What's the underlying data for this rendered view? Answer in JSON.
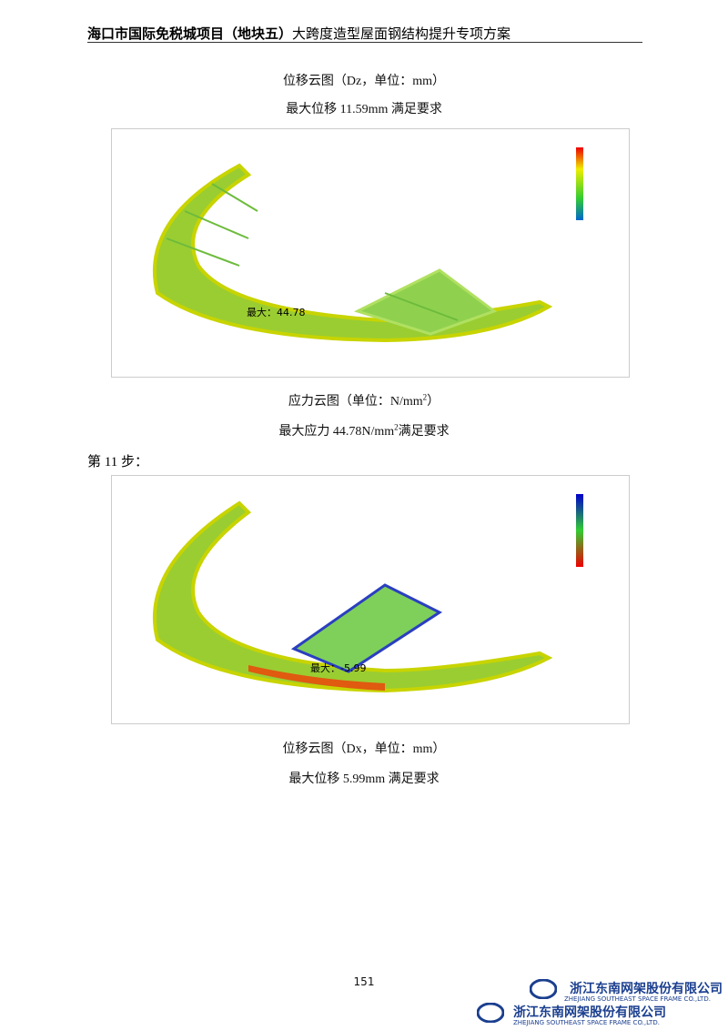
{
  "header": {
    "title_bold": "海口市国际免税城项目（地块五）",
    "title_rest": "大跨度造型屋面钢结构提升专项方案"
  },
  "captions": {
    "c1": "位移云图（Dz，单位：mm）",
    "c2": "最大位移 11.59mm 满足要求",
    "c3": {
      "before": "应力云图（单位：N/mm",
      "sup": "2",
      "after": "）"
    },
    "c4": {
      "before": "最大应力 44.78N/mm",
      "sup": "2",
      "after": "满足要求"
    },
    "step": "第 11 步：",
    "c5": "位移云图（Dx，单位：mm）",
    "c6": "最大位移 5.99mm 满足要求"
  },
  "figures": [
    {
      "annotation": "最大：44.78"
    },
    {
      "annotation": "最大：-5.99"
    }
  ],
  "footer": {
    "page": "151",
    "logos": [
      {
        "name": "浙江东南网架股份有限公司",
        "english": "ZHEJIANG SOUTHEAST SPACE FRAME CO.,LTD."
      },
      {
        "name": "浙江东南网架股份有限公司",
        "english": "ZHEJIANG SOUTHEAST SPACE FRAME CO.,LTD."
      }
    ]
  }
}
